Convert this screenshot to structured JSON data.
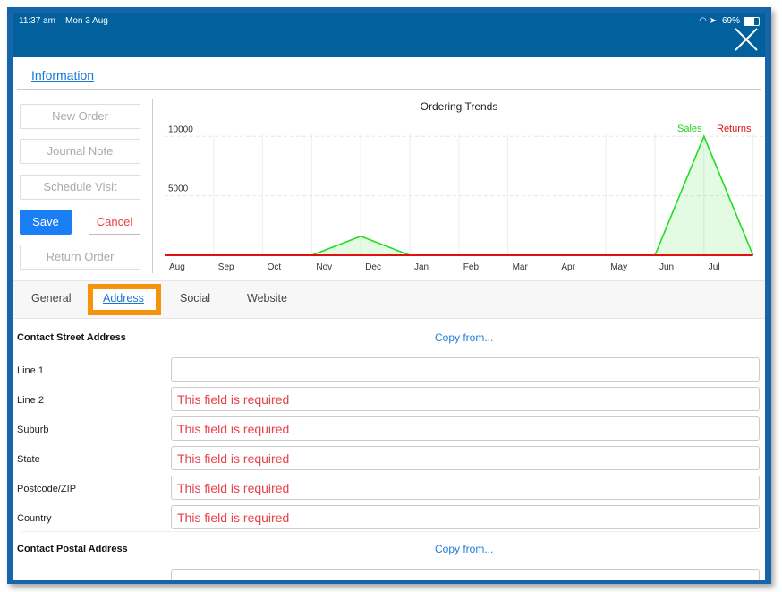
{
  "status_bar": {
    "time": "11:37 am",
    "date": "Mon 3 Aug",
    "battery": "69%"
  },
  "header": {
    "close_icon": "close-x-icon"
  },
  "info_tab": "Information",
  "actions": {
    "new_order": "New Order",
    "journal_note": "Journal Note",
    "schedule_visit": "Schedule Visit",
    "save": "Save",
    "cancel": "Cancel",
    "return_order": "Return Order"
  },
  "tabs": [
    {
      "label": "General"
    },
    {
      "label": "Address",
      "active": true
    },
    {
      "label": "Social"
    },
    {
      "label": "Website"
    }
  ],
  "colors": {
    "header": "#02609c",
    "accent": "#1677d8",
    "save": "#1a7ff5",
    "error": "#e8424b",
    "highlight": "#f5930c",
    "sales": "#22dd22",
    "returns": "#e01010"
  },
  "chart_data": {
    "type": "area",
    "title": "Ordering Trends",
    "categories": [
      "Aug",
      "Sep",
      "Oct",
      "Nov",
      "Dec",
      "Jan",
      "Feb",
      "Mar",
      "Apr",
      "May",
      "Jun",
      "Jul",
      ""
    ],
    "yticks": [
      5000,
      10000
    ],
    "ylim": [
      0,
      11000
    ],
    "grid": true,
    "legend": "top-right",
    "series": [
      {
        "name": "Sales",
        "values": [
          0,
          0,
          0,
          0,
          1600,
          0,
          0,
          0,
          0,
          0,
          0,
          10000,
          0
        ]
      },
      {
        "name": "Returns",
        "values": [
          0,
          0,
          0,
          0,
          0,
          0,
          0,
          0,
          0,
          0,
          0,
          0,
          0
        ]
      }
    ]
  },
  "street": {
    "title": "Contact Street Address",
    "copy": "Copy from...",
    "fields": [
      {
        "label": "Line 1",
        "value": ""
      },
      {
        "label": "Line 2",
        "value": "This field is required"
      },
      {
        "label": "Suburb",
        "value": "This field is required"
      },
      {
        "label": "State",
        "value": "This field is required"
      },
      {
        "label": "Postcode/ZIP",
        "value": "This field is required"
      },
      {
        "label": "Country",
        "value": "This field is required"
      }
    ]
  },
  "postal": {
    "title": "Contact Postal Address",
    "copy": "Copy from..."
  }
}
